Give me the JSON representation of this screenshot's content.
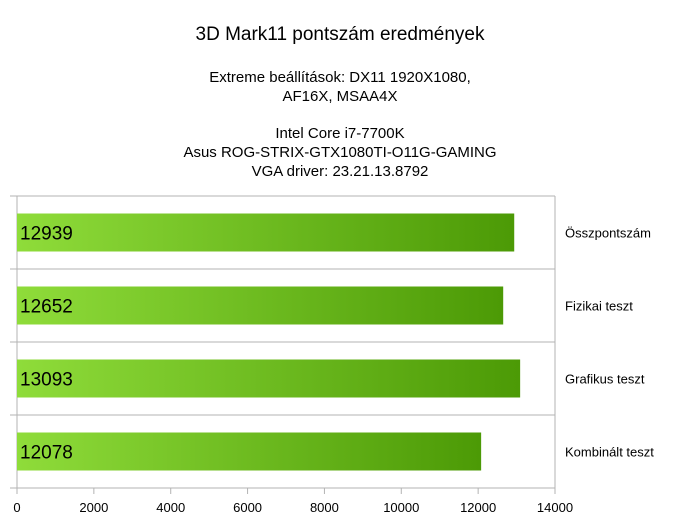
{
  "chart_data": {
    "type": "bar",
    "orientation": "horizontal",
    "title": "3D Mark11 pontszám eredmények",
    "subtitle_lines": [
      "Extreme beállítások: DX11 1920X1080,",
      "AF16X, MSAA4X",
      "",
      "Intel Core i7-7700K",
      "Asus ROG-STRIX-GTX1080TI-O11G-GAMING",
      "VGA driver: 23.21.13.8792"
    ],
    "categories": [
      "Összpontszám",
      "Fizikai teszt",
      "Grafikus teszt",
      "Kombinált teszt"
    ],
    "values": [
      12939,
      12652,
      13093,
      12078
    ],
    "data_labels": [
      "12939",
      "12652",
      "13093",
      "12078"
    ],
    "xlim": [
      0,
      14000
    ],
    "x_ticks": [
      0,
      2000,
      4000,
      6000,
      8000,
      10000,
      12000,
      14000
    ],
    "x_tick_labels": [
      "0",
      "2000",
      "4000",
      "6000",
      "8000",
      "10000",
      "12000",
      "14000"
    ],
    "category_label_position": "right",
    "grid": true,
    "legend": "none",
    "colors": {
      "bar_light": "#8fdc3a",
      "bar_dark": "#4c9a06",
      "grid": "#b3b3b3",
      "axis": "#b3b3b3"
    }
  }
}
